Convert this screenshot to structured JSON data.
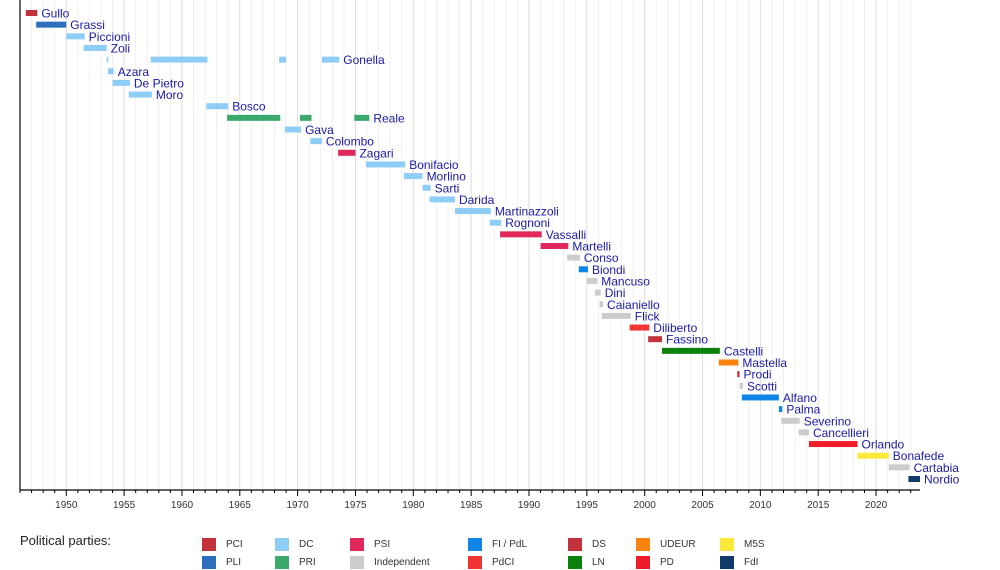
{
  "chart_data": {
    "type": "timeline",
    "title": "",
    "xlabel": "",
    "ylabel": "",
    "xlim": [
      1946.0,
      2023.8
    ],
    "grid": {
      "minor_every_years": 1,
      "major_every_years": 5
    },
    "x_ticks": [
      1950,
      1955,
      1960,
      1965,
      1970,
      1975,
      1980,
      1985,
      1990,
      1995,
      2000,
      2005,
      2010,
      2015,
      2020
    ],
    "parties": {
      "PCI": "#c1323b",
      "PLI": "#2e6fbd",
      "DC": "#8ecdf6",
      "PRI": "#3aa96b",
      "PSI": "#e0295a",
      "Independent": "#cccccc",
      "FI / PdL": "#1185e7",
      "PdCI": "#f03434",
      "DS": "#c1323b",
      "LN": "#0c810c",
      "UDEUR": "#fb8411",
      "PD": "#ed1c28",
      "M5S": "#fce93a",
      "FdI": "#103a6c"
    },
    "rows": [
      {
        "name": "Gullo",
        "terms": [
          {
            "start": 1946.5,
            "end": 1947.5,
            "party": "PCI"
          }
        ]
      },
      {
        "name": "Grassi",
        "terms": [
          {
            "start": 1947.4,
            "end": 1950.0,
            "party": "PLI"
          }
        ]
      },
      {
        "name": "Piccioni",
        "terms": [
          {
            "start": 1950.0,
            "end": 1951.6,
            "party": "DC"
          }
        ]
      },
      {
        "name": "Zoli",
        "terms": [
          {
            "start": 1951.5,
            "end": 1953.5,
            "party": "DC"
          }
        ]
      },
      {
        "name": "Gonella",
        "terms": [
          {
            "start": 1953.5,
            "end": 1953.6,
            "party": "DC"
          },
          {
            "start": 1957.3,
            "end": 1962.2,
            "party": "DC"
          },
          {
            "start": 1968.4,
            "end": 1969.0,
            "party": "DC"
          },
          {
            "start": 1972.1,
            "end": 1973.6,
            "party": "DC"
          }
        ]
      },
      {
        "name": "Azara",
        "terms": [
          {
            "start": 1953.6,
            "end": 1954.1,
            "party": "DC"
          }
        ]
      },
      {
        "name": "De Pietro",
        "terms": [
          {
            "start": 1954.0,
            "end": 1955.5,
            "party": "DC"
          }
        ]
      },
      {
        "name": "Moro",
        "terms": [
          {
            "start": 1955.4,
            "end": 1957.4,
            "party": "DC"
          }
        ]
      },
      {
        "name": "Bosco",
        "terms": [
          {
            "start": 1962.1,
            "end": 1964.0,
            "party": "DC"
          }
        ]
      },
      {
        "name": "Reale",
        "terms": [
          {
            "start": 1963.9,
            "end": 1968.5,
            "party": "PRI"
          },
          {
            "start": 1970.2,
            "end": 1971.2,
            "party": "PRI"
          },
          {
            "start": 1974.9,
            "end": 1976.2,
            "party": "PRI"
          }
        ]
      },
      {
        "name": "Gava",
        "terms": [
          {
            "start": 1968.9,
            "end": 1970.3,
            "party": "DC"
          }
        ]
      },
      {
        "name": "Colombo",
        "terms": [
          {
            "start": 1971.1,
            "end": 1972.1,
            "party": "DC"
          }
        ]
      },
      {
        "name": "Zagari",
        "terms": [
          {
            "start": 1973.5,
            "end": 1975.0,
            "party": "PSI"
          }
        ]
      },
      {
        "name": "Bonifacio",
        "terms": [
          {
            "start": 1975.9,
            "end": 1979.3,
            "party": "DC"
          }
        ]
      },
      {
        "name": "Morlino",
        "terms": [
          {
            "start": 1979.2,
            "end": 1980.8,
            "party": "DC"
          }
        ]
      },
      {
        "name": "Sarti",
        "terms": [
          {
            "start": 1980.8,
            "end": 1981.5,
            "party": "DC"
          }
        ]
      },
      {
        "name": "Darida",
        "terms": [
          {
            "start": 1981.4,
            "end": 1983.6,
            "party": "DC"
          }
        ]
      },
      {
        "name": "Martinazzoli",
        "terms": [
          {
            "start": 1983.6,
            "end": 1986.7,
            "party": "DC"
          }
        ]
      },
      {
        "name": "Rognoni",
        "terms": [
          {
            "start": 1986.6,
            "end": 1987.6,
            "party": "DC"
          }
        ]
      },
      {
        "name": "Vassalli",
        "terms": [
          {
            "start": 1987.5,
            "end": 1991.1,
            "party": "PSI"
          }
        ]
      },
      {
        "name": "Martelli",
        "terms": [
          {
            "start": 1991.0,
            "end": 1993.4,
            "party": "PSI"
          }
        ]
      },
      {
        "name": "Conso",
        "terms": [
          {
            "start": 1993.3,
            "end": 1994.4,
            "party": "Independent"
          }
        ]
      },
      {
        "name": "Biondi",
        "terms": [
          {
            "start": 1994.3,
            "end": 1995.1,
            "party": "FI / PdL"
          }
        ]
      },
      {
        "name": "Mancuso",
        "terms": [
          {
            "start": 1995.0,
            "end": 1995.9,
            "party": "Independent"
          }
        ]
      },
      {
        "name": "Dini",
        "terms": [
          {
            "start": 1995.7,
            "end": 1996.2,
            "party": "Independent"
          }
        ]
      },
      {
        "name": "Caianiello",
        "terms": [
          {
            "start": 1996.1,
            "end": 1996.4,
            "party": "Independent"
          }
        ]
      },
      {
        "name": "Flick",
        "terms": [
          {
            "start": 1996.3,
            "end": 1998.8,
            "party": "Independent"
          }
        ]
      },
      {
        "name": "Diliberto",
        "terms": [
          {
            "start": 1998.7,
            "end": 2000.4,
            "party": "PdCI"
          }
        ]
      },
      {
        "name": "Fassino",
        "terms": [
          {
            "start": 2000.3,
            "end": 2001.5,
            "party": "DS"
          }
        ]
      },
      {
        "name": "Castelli",
        "terms": [
          {
            "start": 2001.5,
            "end": 2006.5,
            "party": "LN"
          }
        ]
      },
      {
        "name": "Mastella",
        "terms": [
          {
            "start": 2006.4,
            "end": 2008.1,
            "party": "UDEUR"
          }
        ]
      },
      {
        "name": "Prodi",
        "terms": [
          {
            "start": 2008.0,
            "end": 2008.2,
            "party": "PCI"
          }
        ]
      },
      {
        "name": "Scotti",
        "terms": [
          {
            "start": 2008.2,
            "end": 2008.5,
            "party": "Independent"
          }
        ]
      },
      {
        "name": "Alfano",
        "terms": [
          {
            "start": 2008.4,
            "end": 2011.6,
            "party": "FI / PdL"
          }
        ]
      },
      {
        "name": "Palma",
        "terms": [
          {
            "start": 2011.6,
            "end": 2011.9,
            "party": "FI / PdL"
          }
        ]
      },
      {
        "name": "Severino",
        "terms": [
          {
            "start": 2011.8,
            "end": 2013.4,
            "party": "Independent"
          }
        ]
      },
      {
        "name": "Cancellieri",
        "terms": [
          {
            "start": 2013.3,
            "end": 2014.2,
            "party": "Independent"
          }
        ]
      },
      {
        "name": "Orlando",
        "terms": [
          {
            "start": 2014.2,
            "end": 2018.4,
            "party": "PD"
          }
        ]
      },
      {
        "name": "Bonafede",
        "terms": [
          {
            "start": 2018.4,
            "end": 2021.1,
            "party": "M5S"
          }
        ]
      },
      {
        "name": "Cartabia",
        "terms": [
          {
            "start": 2021.1,
            "end": 2022.9,
            "party": "Independent"
          }
        ]
      },
      {
        "name": "Nordio",
        "terms": [
          {
            "start": 2022.8,
            "end": 2023.8,
            "party": "FdI"
          }
        ]
      }
    ]
  },
  "legend": {
    "title": "Political parties:",
    "columns": [
      [
        "PCI",
        "PLI"
      ],
      [
        "DC",
        "PRI"
      ],
      [
        "PSI",
        "Independent"
      ],
      [
        "FI / PdL",
        "PdCI"
      ],
      [
        "DS",
        "LN"
      ],
      [
        "UDEUR",
        "PD"
      ],
      [
        "M5S",
        "FdI"
      ]
    ],
    "labels": {
      "PCI": "PCI",
      "PLI": "PLI",
      "DC": "DC",
      "PRI": "PRI",
      "PSI": "PSI",
      "Independent": "Independent",
      "FI / PdL": "FI / PdL",
      "PdCI": "PdCI",
      "DS": "DS",
      "LN": "LN",
      "UDEUR": "UDEUR",
      "PD": "PD",
      "M5S": "M5S",
      "FdI": "FdI"
    }
  }
}
